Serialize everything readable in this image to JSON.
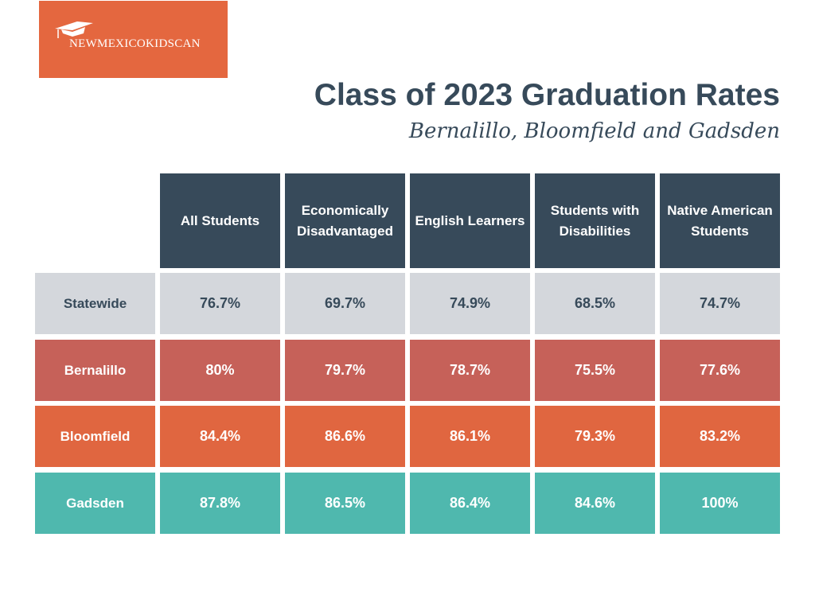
{
  "logo": {
    "text": "NewMexicoKidsCan",
    "brand_color": "#e4673f"
  },
  "title": "Class of 2023 Graduation Rates",
  "subtitle": "Bernalillo, Bloomfield and Gadsden",
  "columns": [
    "All Students",
    "Economically Disadvantaged",
    "English Learners",
    "Students with Disabilities",
    "Native American Students"
  ],
  "rows": [
    {
      "label": "Statewide",
      "values": [
        "76.7%",
        "69.7%",
        "74.9%",
        "68.5%",
        "74.7%"
      ],
      "color": "#d4d7dc",
      "text": "#374a5a"
    },
    {
      "label": "Bernalillo",
      "values": [
        "80%",
        "79.7%",
        "78.7%",
        "75.5%",
        "77.6%"
      ],
      "color": "#c66159",
      "text": "#ffffff"
    },
    {
      "label": "Bloomfield",
      "values": [
        "84.4%",
        "86.6%",
        "86.1%",
        "79.3%",
        "83.2%"
      ],
      "color": "#e06640",
      "text": "#ffffff"
    },
    {
      "label": "Gadsden",
      "values": [
        "87.8%",
        "86.5%",
        "86.4%",
        "84.6%",
        "100%"
      ],
      "color": "#4fb8ae",
      "text": "#ffffff"
    }
  ]
}
